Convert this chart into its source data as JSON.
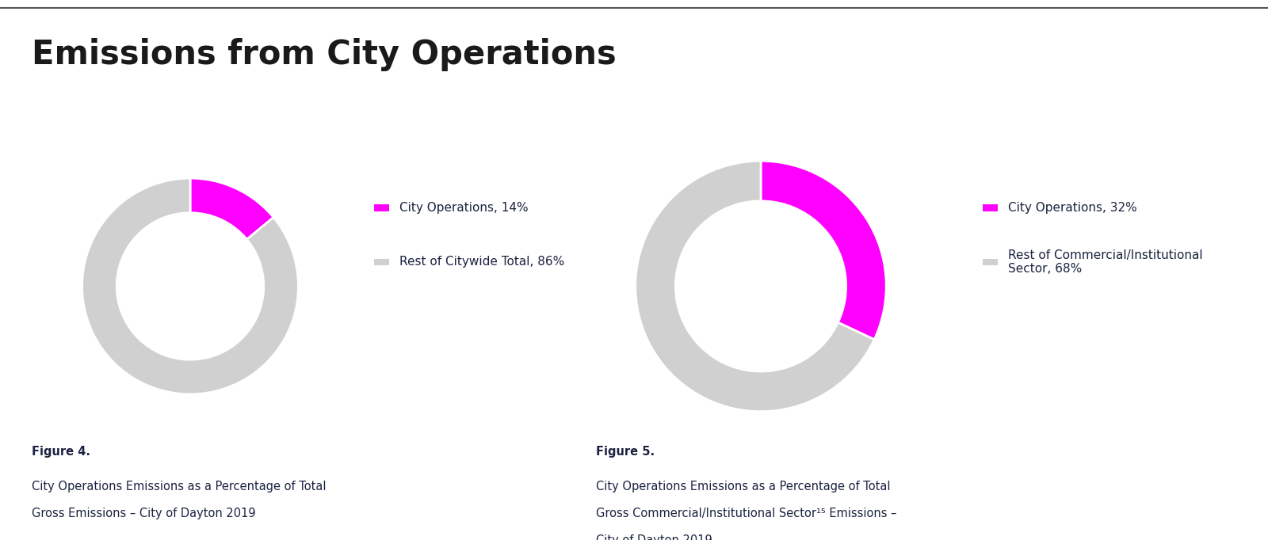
{
  "title": "Emissions from City Operations",
  "title_fontsize": 30,
  "title_color": "#1a1a1a",
  "background_color": "#ffffff",
  "magenta_color": "#ff00ff",
  "gray_color": "#d0d0d0",
  "text_color": "#1a2240",
  "border_color": "#555555",
  "chart1": {
    "values": [
      14,
      86
    ],
    "colors": [
      "#ff00ff",
      "#d0d0d0"
    ],
    "legend_labels": [
      "City Operations, 14%",
      "Rest of Citywide Total, 86%"
    ],
    "figure_label": "Figure 4.",
    "caption_line1": "City Operations Emissions as a Percentage of Total",
    "caption_line2": "Gross Emissions – City of Dayton 2019"
  },
  "chart2": {
    "values": [
      32,
      68
    ],
    "colors": [
      "#ff00ff",
      "#d0d0d0"
    ],
    "legend_labels": [
      "City Operations, 32%",
      "Rest of Commercial/Institutional\nSector, 68%"
    ],
    "figure_label": "Figure 5.",
    "caption_line1": "City Operations Emissions as a Percentage of Total",
    "caption_line2": "Gross Commercial/Institutional Sector¹⁵ Emissions –",
    "caption_line3": "City of Dayton 2019"
  },
  "donut_width": 0.32,
  "legend_fontsize": 11,
  "caption_fontsize": 10.5,
  "figure_label_fontsize": 10.5
}
